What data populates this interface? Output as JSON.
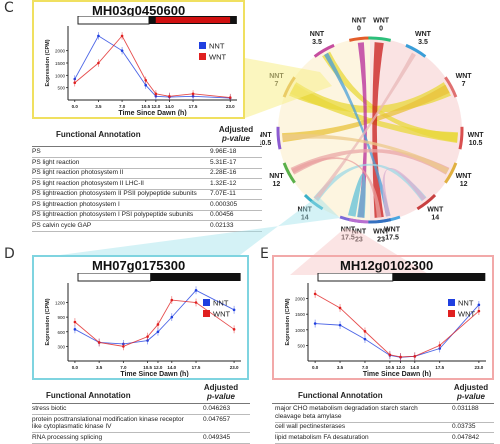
{
  "panels": {
    "C": {
      "letter": "C",
      "gene": "MH03g0450600",
      "ylabel": "Expression (CPM)",
      "xlabel": "Time Since Dawn (h)",
      "xticks": [
        "0.0",
        "3.5",
        "7.0",
        "10.5",
        "12.0",
        "14.0",
        "17.5",
        "23.0"
      ],
      "yticks": [
        "2000",
        "1500",
        "1000",
        "500"
      ],
      "light_bar": {
        "light_label": "",
        "dark_label": "WNT"
      },
      "legend": [
        {
          "name": "NNT",
          "color": "#1f3fe0"
        },
        {
          "name": "WNT",
          "color": "#e02020"
        }
      ],
      "annotation_header": "Functional Annotation",
      "pvalue_header": [
        "Adjusted",
        "p-value"
      ],
      "rows": [
        {
          "term": "PS",
          "p": "9.96E-18"
        },
        {
          "term": "PS light reaction",
          "p": "5.31E-17"
        },
        {
          "term": "PS light reaction photosystem II",
          "p": "2.28E-16"
        },
        {
          "term": "PS light reaction photosystem II LHC-II",
          "p": "1.32E-12"
        },
        {
          "term": "PS lightreaction photosystem II PSII polypeptide subunits",
          "p": "7.07E-11"
        },
        {
          "term": "PS lightreaction photosystem I",
          "p": "0.000305"
        },
        {
          "term": "PS lightreaction photosystem I PSI polypeptide subunits",
          "p": "0.00456"
        },
        {
          "term": "PS calvin cycle GAP",
          "p": "0.02133"
        }
      ]
    },
    "D": {
      "letter": "D",
      "gene": "MH07g0175300",
      "ylabel": "Expression (CPM)",
      "xlabel": "Time Since Dawn (h)",
      "xticks": [
        "0.0",
        "3.5",
        "7.0",
        "10.5",
        "12.0",
        "14.0",
        "17.5",
        "23.0"
      ],
      "yticks": [
        "1200",
        "900",
        "600",
        "300"
      ],
      "legend": [
        {
          "name": "NNT",
          "color": "#1f3fe0"
        },
        {
          "name": "WNT",
          "color": "#e02020"
        }
      ],
      "annotation_header": "Functional Annotation",
      "pvalue_header": [
        "Adjusted",
        "p-value"
      ],
      "rows": [
        {
          "term": "stress biotic",
          "p": "0.046263"
        },
        {
          "term": "protein posttranslational modification kinase receptor like cytoplasmatic kinase IV",
          "p": "0.047657"
        },
        {
          "term": "RNA processing splicing",
          "p": "0.049345"
        }
      ]
    },
    "E": {
      "letter": "E",
      "gene": "MH12g0102300",
      "ylabel": "Expression (CPM)",
      "xlabel": "Time Since Dawn (h)",
      "xticks": [
        "0.0",
        "3.5",
        "7.0",
        "10.5",
        "12.0",
        "14.0",
        "17.5",
        "23.0"
      ],
      "yticks": [
        "2000",
        "1500",
        "1000",
        "500"
      ],
      "legend": [
        {
          "name": "NNT",
          "color": "#1f3fe0"
        },
        {
          "name": "WNT",
          "color": "#e02020"
        }
      ],
      "annotation_header": "Functional Annotation",
      "pvalue_header": [
        "Adjusted",
        "p-value"
      ],
      "rows": [
        {
          "term": "major CHO metabolism degradation starch starch cleavage beta amylase",
          "p": "0.031188"
        },
        {
          "term": "cell wall pectinesterases",
          "p": "0.03735"
        },
        {
          "term": "lipid metabolism FA desaturation",
          "p": "0.047842"
        }
      ]
    }
  },
  "chord": {
    "labels": [
      {
        "text": "NNT\n0"
      },
      {
        "text": "WNT\n0"
      },
      {
        "text": "NNT\n3.5"
      },
      {
        "text": "WNT\n3.5"
      },
      {
        "text": "NNT\n7"
      },
      {
        "text": "WNT\n7"
      },
      {
        "text": "NNT\n10.5"
      },
      {
        "text": "WNT\n10.5"
      },
      {
        "text": "NNT\n12"
      },
      {
        "text": "WNT\n12"
      },
      {
        "text": "NNT\n14"
      },
      {
        "text": "WNT\n14"
      },
      {
        "text": "NNT\n17.5"
      },
      {
        "text": "WNT\n17.5"
      },
      {
        "text": "NNT\n23"
      },
      {
        "text": "WNT\n23"
      }
    ]
  },
  "colors": {
    "C_frame": "#f0e060",
    "D_frame": "#7fd4e0",
    "E_frame": "#f2a9a9",
    "NNT": "#1f3fe0",
    "WNT": "#e02020"
  },
  "chart_data": [
    {
      "type": "line",
      "title": "MH03g0450600",
      "xlabel": "Time Since Dawn (h)",
      "ylabel": "Expression (CPM)",
      "x": [
        0.0,
        3.5,
        7.0,
        10.5,
        12.0,
        14.0,
        17.5,
        23.0
      ],
      "ylim": [
        0,
        3000
      ],
      "series": [
        {
          "name": "NNT",
          "values": [
            850,
            2600,
            2000,
            600,
            150,
            120,
            150,
            80
          ]
        },
        {
          "name": "WNT",
          "values": [
            700,
            1500,
            2600,
            800,
            250,
            150,
            250,
            100
          ]
        }
      ]
    },
    {
      "type": "line",
      "title": "MH07g0175300",
      "xlabel": "Time Since Dawn (h)",
      "ylabel": "Expression (CPM)",
      "x": [
        0.0,
        3.5,
        7.0,
        10.5,
        12.0,
        14.0,
        17.5,
        23.0
      ],
      "ylim": [
        0,
        1600
      ],
      "series": [
        {
          "name": "NNT",
          "values": [
            650,
            380,
            350,
            420,
            600,
            900,
            1450,
            1050
          ]
        },
        {
          "name": "WNT",
          "values": [
            800,
            380,
            300,
            500,
            750,
            1250,
            1200,
            650
          ]
        }
      ]
    },
    {
      "type": "line",
      "title": "MH12g0102300",
      "xlabel": "Time Since Dawn (h)",
      "ylabel": "Expression (CPM)",
      "x": [
        0.0,
        3.5,
        7.0,
        10.5,
        12.0,
        14.0,
        17.5,
        23.0
      ],
      "ylim": [
        0,
        2500
      ],
      "series": [
        {
          "name": "NNT",
          "values": [
            1200,
            1150,
            700,
            180,
            120,
            150,
            400,
            1800
          ]
        },
        {
          "name": "WNT",
          "values": [
            2150,
            1700,
            950,
            200,
            130,
            150,
            500,
            1600
          ]
        }
      ]
    }
  ]
}
